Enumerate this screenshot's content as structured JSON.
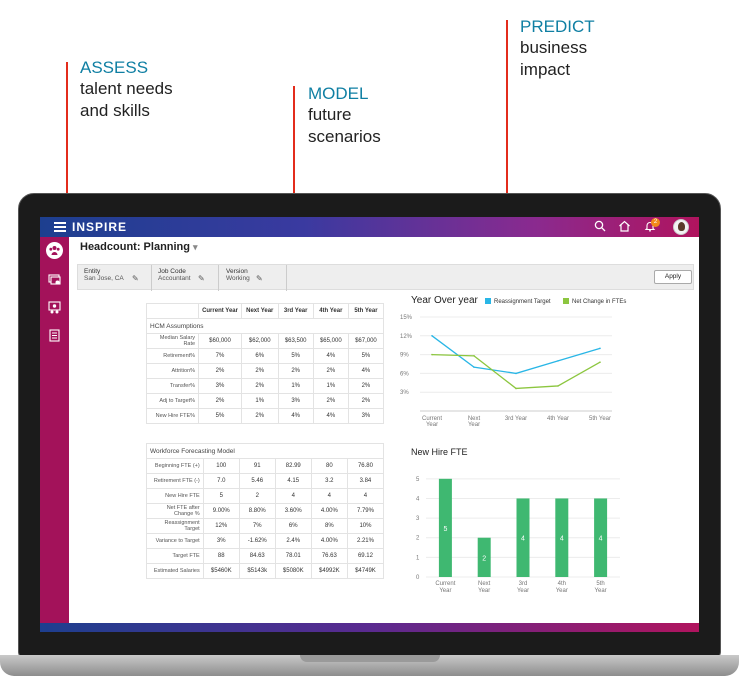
{
  "callouts": {
    "assess": {
      "accent": "ASSESS",
      "line1": "talent needs",
      "line2": "and skills"
    },
    "model": {
      "accent": "MODEL",
      "line1": "future",
      "line2": "scenarios"
    },
    "predict": {
      "accent": "PREDICT",
      "line1": "business",
      "line2": "impact"
    }
  },
  "app": {
    "brand": "INSPIRE",
    "notification_count": "2",
    "icons": [
      "menu-icon",
      "search-icon",
      "home-icon",
      "bell-icon",
      "avatar"
    ]
  },
  "sidebar": {
    "icons": [
      "people-group-icon",
      "cards-icon",
      "team-icon",
      "checklist-icon"
    ]
  },
  "page": {
    "title": "Headcount: Planning",
    "filters": [
      {
        "label": "Entity",
        "value": "San Jose, CA"
      },
      {
        "label": "Job Code",
        "value": "Accountant"
      },
      {
        "label": "Version",
        "value": "Working"
      }
    ],
    "apply_label": "Apply"
  },
  "hcm_table": {
    "columns": [
      "Current Year",
      "Next Year",
      "3rd Year",
      "4th Year",
      "5th Year"
    ],
    "section": "HCM Assumptions",
    "rows": [
      {
        "label": "Median Salary Rate",
        "values": [
          "$60,000",
          "$62,000",
          "$63,500",
          "$65,000",
          "$67,000"
        ]
      },
      {
        "label": "Retirement%",
        "values": [
          "7%",
          "6%",
          "5%",
          "4%",
          "5%"
        ]
      },
      {
        "label": "Attrition%",
        "values": [
          "2%",
          "2%",
          "2%",
          "2%",
          "4%"
        ]
      },
      {
        "label": "Transfer%",
        "values": [
          "3%",
          "2%",
          "1%",
          "1%",
          "2%"
        ]
      },
      {
        "label": "Adj to Target%",
        "values": [
          "2%",
          "1%",
          "3%",
          "2%",
          "2%"
        ]
      },
      {
        "label": "New Hire FTE%",
        "values": [
          "5%",
          "2%",
          "4%",
          "4%",
          "3%"
        ]
      }
    ]
  },
  "wfm_table": {
    "section": "Workforce Forecasting Model",
    "rows": [
      {
        "label": "Beginning FTE (+)",
        "values": [
          "100",
          "91",
          "82.99",
          "80",
          "76.80"
        ]
      },
      {
        "label": "Retirement FTE (-)",
        "values": [
          "7.0",
          "5.46",
          "4.15",
          "3.2",
          "3.84"
        ]
      },
      {
        "label": "New Hire FTE",
        "values": [
          "5",
          "2",
          "4",
          "4",
          "4"
        ]
      },
      {
        "label": "Net FTE after Change %",
        "values": [
          "9.00%",
          "8.80%",
          "3.60%",
          "4.00%",
          "7.79%"
        ]
      },
      {
        "label": "Reassignment Target",
        "values": [
          "12%",
          "7%",
          "6%",
          "8%",
          "10%"
        ]
      },
      {
        "label": "Variance to Target",
        "values": [
          "3%",
          "-1.62%",
          "2.4%",
          "4.00%",
          "2.21%"
        ]
      },
      {
        "label": "Target FTE",
        "values": [
          "88",
          "84.63",
          "78.01",
          "76.63",
          "69.12"
        ]
      },
      {
        "label": "Estimated Salaries",
        "values": [
          "$5460K",
          "$5143k",
          "$5080K",
          "$4992K",
          "$4749K"
        ]
      }
    ]
  },
  "chart_data": [
    {
      "type": "line",
      "title": "Year Over year",
      "categories": [
        "Current Year",
        "Next Year",
        "3rd Year",
        "4th Year",
        "5th Year"
      ],
      "series": [
        {
          "name": "Reassignment Target",
          "color": "#29b6e6",
          "values": [
            12,
            7,
            6,
            8,
            10
          ]
        },
        {
          "name": "Net Change in FTEs",
          "color": "#8cc63f",
          "values": [
            9,
            8.8,
            3.6,
            4,
            7.79
          ]
        }
      ],
      "yticks": [
        "3%",
        "6%",
        "9%",
        "12%",
        "15%"
      ],
      "ylim": [
        0,
        15
      ],
      "legend": "top"
    },
    {
      "type": "bar",
      "title": "New Hire FTE",
      "categories": [
        "Current Year",
        "Next Year",
        "3rd Year",
        "4th Year",
        "5th Year"
      ],
      "values": [
        5,
        2,
        4,
        4,
        4
      ],
      "data_labels": [
        "5",
        "2",
        "4",
        "4",
        "4"
      ],
      "yticks": [
        "0",
        "1",
        "2",
        "3",
        "4",
        "5"
      ],
      "ylim": [
        0,
        5.5
      ],
      "color": "#3fb871",
      "grid": true
    }
  ]
}
